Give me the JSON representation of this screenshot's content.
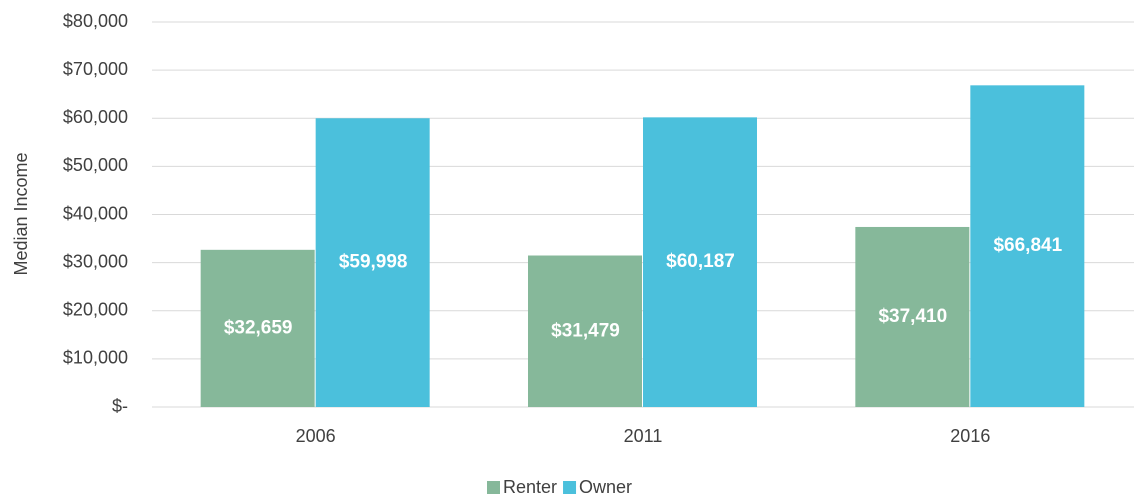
{
  "chart_data": {
    "type": "bar",
    "categories": [
      "2006",
      "2011",
      "2016"
    ],
    "series": [
      {
        "name": "Renter",
        "color": "#86b89a",
        "values": [
          32659,
          31479,
          37410
        ],
        "value_labels": [
          "$32,659",
          "$31,479",
          "$37,410"
        ]
      },
      {
        "name": "Owner",
        "color": "#4bc0dc",
        "values": [
          59998,
          60187,
          66841
        ],
        "value_labels": [
          "$59,998",
          "$60,187",
          "$66,841"
        ]
      }
    ],
    "y_label": "Median Income",
    "ylim": [
      0,
      80000
    ],
    "yticks": [
      {
        "value": 0,
        "label": "$-"
      },
      {
        "value": 10000,
        "label": "$10,000"
      },
      {
        "value": 20000,
        "label": "$20,000"
      },
      {
        "value": 30000,
        "label": "$30,000"
      },
      {
        "value": 40000,
        "label": "$40,000"
      },
      {
        "value": 50000,
        "label": "$50,000"
      },
      {
        "value": 60000,
        "label": "$60,000"
      },
      {
        "value": 70000,
        "label": "$70,000"
      },
      {
        "value": 80000,
        "label": "$80,000"
      }
    ],
    "grid": true,
    "legend": "bottom"
  }
}
